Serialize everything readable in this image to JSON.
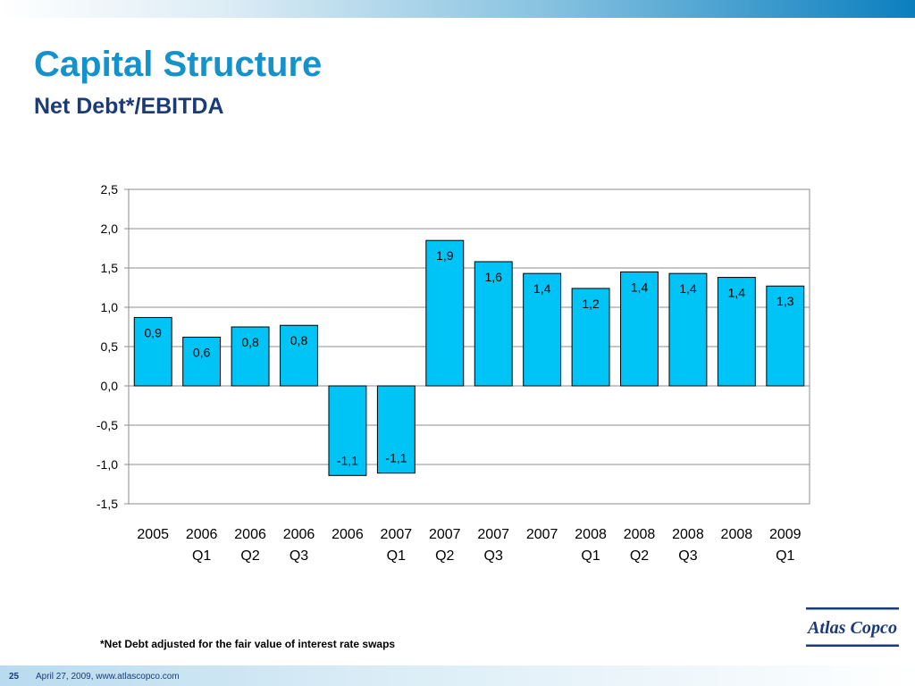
{
  "header": {
    "title": "Capital Structure",
    "subtitle": "Net Debt*/EBITDA"
  },
  "chart_data": {
    "type": "bar",
    "categories": [
      [
        "2005",
        ""
      ],
      [
        "2006",
        "Q1"
      ],
      [
        "2006",
        "Q2"
      ],
      [
        "2006",
        "Q3"
      ],
      [
        "2006",
        ""
      ],
      [
        "2007",
        "Q1"
      ],
      [
        "2007",
        "Q2"
      ],
      [
        "2007",
        "Q3"
      ],
      [
        "2007",
        ""
      ],
      [
        "2008",
        "Q1"
      ],
      [
        "2008",
        "Q2"
      ],
      [
        "2008",
        "Q3"
      ],
      [
        "2008",
        ""
      ],
      [
        "2009",
        "Q1"
      ]
    ],
    "values": [
      0.87,
      0.62,
      0.75,
      0.77,
      -1.14,
      -1.11,
      1.85,
      1.58,
      1.43,
      1.24,
      1.45,
      1.43,
      1.38,
      1.27
    ],
    "data_labels": [
      "0,9",
      "0,6",
      "0,8",
      "0,8",
      "-1,1",
      "-1,1",
      "1,9",
      "1,6",
      "1,4",
      "1,2",
      "1,4",
      "1,4",
      "1,4",
      "1,3"
    ],
    "ylim": [
      -1.5,
      2.5
    ],
    "yticks": [
      2.5,
      2.0,
      1.5,
      1.0,
      0.5,
      0.0,
      -0.5,
      -1.0,
      -1.5
    ],
    "ytick_labels": [
      "2,5",
      "2,0",
      "1,5",
      "1,0",
      "0,5",
      "0,0",
      "-0,5",
      "-1,0",
      "-1,5"
    ],
    "grid": true,
    "bar_color": "#00c4f5",
    "bar_edge": "#000000"
  },
  "footnote": "*Net Debt adjusted for the fair value of interest rate swaps",
  "footer": {
    "page": "25",
    "text": "April 27, 2009, www.atlascopco.com"
  },
  "logo": {
    "text": "Atlas Copco",
    "color": "#1b3b78"
  }
}
